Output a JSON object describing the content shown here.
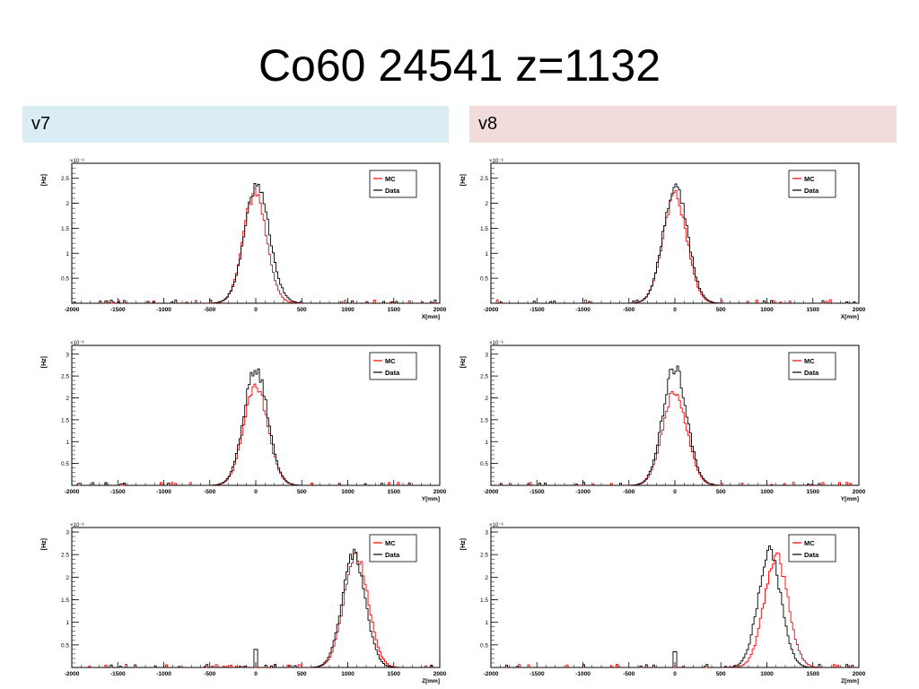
{
  "slide": {
    "title": "Co60 24541 z=1132",
    "columns": [
      {
        "label": "v7",
        "background": "#daedf4"
      },
      {
        "label": "v8",
        "background": "#f2dcdb"
      }
    ]
  },
  "colors": {
    "mc": "#ff0000",
    "data": "#000000"
  },
  "chart_data": [
    {
      "type": "line",
      "column": "v7",
      "axis": "X",
      "xlabel": "X[mm]",
      "ylabel": "[Hz]",
      "yexp": "×10⁻⁶",
      "xlim": [
        -2000,
        2000
      ],
      "ylim": [
        0,
        2.8
      ],
      "xticks": [
        -2000,
        -1500,
        -1000,
        -500,
        0,
        500,
        1000,
        1500,
        2000
      ],
      "yticks": [
        0.5,
        1,
        1.5,
        2,
        2.5
      ],
      "legend": [
        "MC",
        "Data"
      ],
      "legend_position": "top-right",
      "series": [
        {
          "name": "MC",
          "center": -10,
          "sigma": 125,
          "peak": 2.2
        },
        {
          "name": "Data",
          "center": 15,
          "sigma": 135,
          "peak": 2.35
        }
      ]
    },
    {
      "type": "line",
      "column": "v8",
      "axis": "X",
      "xlabel": "X[mm]",
      "ylabel": "[Hz]",
      "yexp": "×10⁻⁶",
      "xlim": [
        -2000,
        2000
      ],
      "ylim": [
        0,
        2.8
      ],
      "xticks": [
        -2000,
        -1500,
        -1000,
        -500,
        0,
        500,
        1000,
        1500,
        2000
      ],
      "yticks": [
        0.5,
        1,
        1.5,
        2,
        2.5
      ],
      "legend": [
        "MC",
        "Data"
      ],
      "legend_position": "top-right",
      "series": [
        {
          "name": "MC",
          "center": 0,
          "sigma": 130,
          "peak": 2.15
        },
        {
          "name": "Data",
          "center": 5,
          "sigma": 132,
          "peak": 2.35
        }
      ]
    },
    {
      "type": "line",
      "column": "v7",
      "axis": "Y",
      "xlabel": "Y[mm]",
      "ylabel": "[Hz]",
      "yexp": "×10⁻⁶",
      "xlim": [
        -2000,
        2000
      ],
      "ylim": [
        0,
        3.2
      ],
      "xticks": [
        -2000,
        -1500,
        -1000,
        -500,
        0,
        500,
        1000,
        1500,
        2000
      ],
      "yticks": [
        0.5,
        1,
        1.5,
        2,
        2.5,
        3
      ],
      "legend": [
        "MC",
        "Data"
      ],
      "legend_position": "top-right",
      "series": [
        {
          "name": "MC",
          "center": 0,
          "sigma": 130,
          "peak": 2.25
        },
        {
          "name": "Data",
          "center": 0,
          "sigma": 130,
          "peak": 2.65
        }
      ]
    },
    {
      "type": "line",
      "column": "v8",
      "axis": "Y",
      "xlabel": "Y[mm]",
      "ylabel": "[Hz]",
      "yexp": "×10⁻⁶",
      "xlim": [
        -2000,
        2000
      ],
      "ylim": [
        0,
        3.2
      ],
      "xticks": [
        -2000,
        -1500,
        -1000,
        -500,
        0,
        500,
        1000,
        1500,
        2000
      ],
      "yticks": [
        0.5,
        1,
        1.5,
        2,
        2.5,
        3
      ],
      "legend": [
        "MC",
        "Data"
      ],
      "legend_position": "top-right",
      "series": [
        {
          "name": "MC",
          "center": 0,
          "sigma": 130,
          "peak": 2.15
        },
        {
          "name": "Data",
          "center": 0,
          "sigma": 130,
          "peak": 2.7
        }
      ]
    },
    {
      "type": "line",
      "column": "v7",
      "axis": "Z",
      "xlabel": "Z[mm]",
      "ylabel": "[Hz]",
      "yexp": "×10⁻⁶",
      "xlim": [
        -2000,
        2000
      ],
      "ylim": [
        0,
        3.1
      ],
      "xticks": [
        -2000,
        -1500,
        -1000,
        -500,
        0,
        500,
        1000,
        1500,
        2000
      ],
      "yticks": [
        0.5,
        1,
        1.5,
        2,
        2.5,
        3
      ],
      "legend": [
        "MC",
        "Data"
      ],
      "legend_position": "top-right",
      "series": [
        {
          "name": "MC",
          "center": 1090,
          "sigma": 130,
          "peak": 2.5
        },
        {
          "name": "Data",
          "center": 1065,
          "sigma": 125,
          "peak": 2.55,
          "spike_x": 0,
          "spike_y": 0.4
        }
      ]
    },
    {
      "type": "line",
      "column": "v8",
      "axis": "Z",
      "xlabel": "Z[mm]",
      "ylabel": "[Hz]",
      "yexp": "×10⁻⁶",
      "xlim": [
        -2000,
        2000
      ],
      "ylim": [
        0,
        3.1
      ],
      "xticks": [
        -2000,
        -1500,
        -1000,
        -500,
        0,
        500,
        1000,
        1500,
        2000
      ],
      "yticks": [
        0.5,
        1,
        1.5,
        2,
        2.5,
        3
      ],
      "legend": [
        "MC",
        "Data"
      ],
      "legend_position": "top-right",
      "series": [
        {
          "name": "MC",
          "center": 1100,
          "sigma": 130,
          "peak": 2.45
        },
        {
          "name": "Data",
          "center": 1030,
          "sigma": 125,
          "peak": 2.55,
          "spike_x": 0,
          "spike_y": 0.35
        }
      ]
    }
  ]
}
